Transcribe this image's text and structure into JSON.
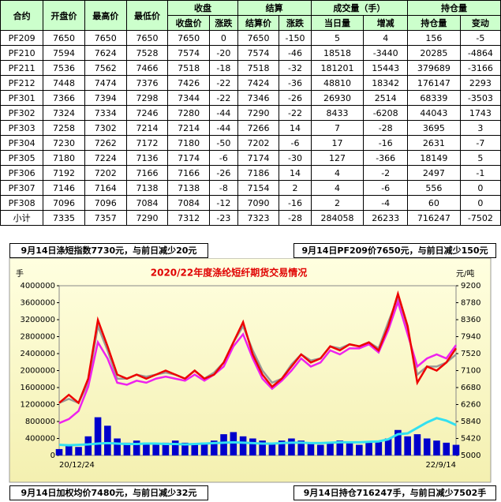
{
  "table": {
    "header1": [
      "合约",
      "开盘价",
      "最高价",
      "最低价",
      "收盘",
      "结算",
      "成交量（手）",
      "持仓量"
    ],
    "header2": [
      "收盘价",
      "涨跌",
      "结算价",
      "涨跌",
      "当日量",
      "增减",
      "持仓量",
      "变动"
    ],
    "rows": [
      [
        "PF209",
        7650,
        7650,
        7650,
        7650,
        0,
        7650,
        -150,
        5,
        4,
        156,
        -5
      ],
      [
        "PF210",
        7594,
        7624,
        7528,
        7574,
        -20,
        7574,
        -46,
        18518,
        -3440,
        20285,
        -4864
      ],
      [
        "PF211",
        7536,
        7562,
        7466,
        7518,
        -18,
        7518,
        -32,
        181201,
        15443,
        379689,
        -3166
      ],
      [
        "PF212",
        7448,
        7474,
        7376,
        7426,
        -22,
        7424,
        -36,
        48810,
        18342,
        176147,
        2293
      ],
      [
        "PF301",
        7366,
        7394,
        7298,
        7344,
        -22,
        7346,
        -26,
        26930,
        2514,
        68339,
        -3503
      ],
      [
        "PF302",
        7324,
        7334,
        7246,
        7280,
        -44,
        7290,
        -22,
        8433,
        -6208,
        44043,
        1743
      ],
      [
        "PF303",
        7258,
        7302,
        7214,
        7214,
        -44,
        7266,
        14,
        7,
        -28,
        3695,
        3
      ],
      [
        "PF304",
        7230,
        7262,
        7172,
        7180,
        -50,
        7202,
        -6,
        17,
        -16,
        2631,
        -7
      ],
      [
        "PF305",
        7180,
        7224,
        7136,
        7174,
        -6,
        7174,
        -30,
        127,
        -366,
        18149,
        5
      ],
      [
        "PF306",
        7192,
        7202,
        7166,
        7166,
        -26,
        7186,
        14,
        4,
        -2,
        2497,
        -1
      ],
      [
        "PF307",
        7146,
        7164,
        7138,
        7138,
        -8,
        7154,
        2,
        4,
        -6,
        556,
        0
      ],
      [
        "PF308",
        7096,
        7096,
        7084,
        7084,
        -12,
        7090,
        -16,
        2,
        -4,
        60,
        0
      ],
      [
        "小计",
        7335,
        7357,
        7290,
        7312,
        -23,
        7323,
        -28,
        284058,
        26233,
        716247,
        -7502
      ]
    ]
  },
  "annotations": [
    "9月14日涤短指数7730元，与前日减少20元",
    "9月14日PF209价7650元，与前日减少150元",
    "9月14日加权均价7480元，与前日减少32元",
    "9月14日持仓716247手，与前日减少7502手"
  ],
  "chart_data": {
    "type": "line",
    "title": "2020/22年度涤纶短纤期货交易情况",
    "ylabel": "手",
    "y2label": "元/吨",
    "x": [
      "20/12/24",
      null,
      null,
      null,
      null,
      null,
      null,
      null,
      null,
      null,
      null,
      null,
      null,
      null,
      null,
      null,
      null,
      null,
      null,
      null,
      null,
      null,
      null,
      null,
      null,
      null,
      null,
      null,
      null,
      null,
      null,
      null,
      null,
      null,
      null,
      null,
      null,
      null,
      null,
      null,
      null,
      "22/9/14"
    ],
    "ylim": [
      0,
      4000000
    ],
    "yticks": [
      0,
      400000,
      800000,
      1200000,
      1600000,
      2000000,
      2400000,
      2800000,
      3200000,
      3600000,
      4000000
    ],
    "y2lim": [
      5000,
      9200
    ],
    "y2ticks": [
      5000,
      5420,
      5840,
      6260,
      6680,
      7100,
      7520,
      7940,
      8360,
      8780,
      9200
    ],
    "series": [
      {
        "type": "bar",
        "color": "#0000cc",
        "values": [
          150000,
          250000,
          200000,
          450000,
          900000,
          700000,
          400000,
          300000,
          350000,
          300000,
          250000,
          300000,
          350000,
          300000,
          250000,
          300000,
          350000,
          500000,
          550000,
          450000,
          400000,
          350000,
          300000,
          350000,
          400000,
          350000,
          300000,
          250000,
          300000,
          350000,
          300000,
          250000,
          300000,
          350000,
          400000,
          600000,
          450000,
          500000,
          400000,
          350000,
          300000,
          250000
        ]
      },
      {
        "color": "#33e0f0",
        "values": [
          250000,
          240000,
          250000,
          260000,
          280000,
          290000,
          280000,
          270000,
          270000,
          280000,
          280000,
          270000,
          270000,
          260000,
          270000,
          280000,
          290000,
          300000,
          310000,
          300000,
          290000,
          280000,
          280000,
          290000,
          300000,
          300000,
          290000,
          290000,
          300000,
          310000,
          310000,
          310000,
          320000,
          330000,
          380000,
          500000,
          520000,
          650000,
          780000,
          880000,
          820000,
          716247
        ]
      },
      {
        "axis": "y2",
        "color": "#999999",
        "values": [
          6300,
          6400,
          6300,
          6800,
          8200,
          7600,
          6900,
          6900,
          7000,
          6950,
          7000,
          7050,
          7000,
          6900,
          7100,
          6900,
          7050,
          7300,
          7800,
          8200,
          7600,
          7100,
          6800,
          6900,
          7250,
          7500,
          7350,
          7400,
          7700,
          7650,
          7750,
          7700,
          7800,
          7650,
          8300,
          8900,
          8100,
          7000,
          7200,
          7200,
          7300,
          7500
        ]
      },
      {
        "axis": "y2",
        "color": "#ee22ee",
        "values": [
          5800,
          5900,
          6100,
          6700,
          7800,
          7400,
          6800,
          6750,
          6850,
          6800,
          6900,
          6950,
          6900,
          6850,
          7000,
          6850,
          7000,
          7200,
          7700,
          8000,
          7400,
          6900,
          6650,
          6850,
          7100,
          7400,
          7200,
          7300,
          7600,
          7500,
          7650,
          7650,
          7750,
          7550,
          8100,
          8800,
          8000,
          7200,
          7400,
          7500,
          7400,
          7730
        ]
      },
      {
        "axis": "y2",
        "color": "#ee0000",
        "values": [
          6300,
          6500,
          6300,
          6900,
          8350,
          7700,
          7000,
          6900,
          7000,
          6900,
          7000,
          7100,
          7000,
          6900,
          7100,
          6900,
          7000,
          7300,
          7800,
          8300,
          7500,
          7000,
          6700,
          6900,
          7200,
          7500,
          7300,
          7400,
          7700,
          7600,
          7750,
          7700,
          7800,
          7600,
          8200,
          9000,
          8200,
          6800,
          7200,
          7100,
          7300,
          7650
        ]
      }
    ]
  }
}
